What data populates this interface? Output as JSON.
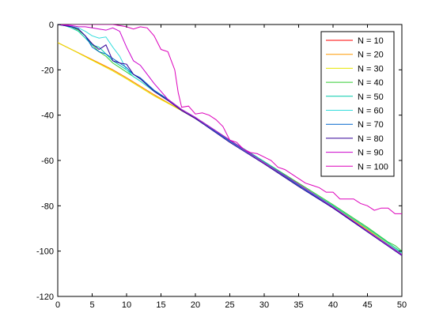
{
  "chart_data": {
    "type": "line",
    "title": "",
    "xlabel": "",
    "ylabel": "",
    "xlim": [
      0,
      50
    ],
    "ylim": [
      -120,
      0
    ],
    "xticks": [
      0,
      5,
      10,
      15,
      20,
      25,
      30,
      35,
      40,
      45,
      50
    ],
    "yticks": [
      0,
      -20,
      -40,
      -60,
      -80,
      -100,
      -120
    ],
    "grid": false,
    "legend_position": "top-right",
    "series": [
      {
        "name": "N = 10",
        "color": "#ff0000",
        "points": [
          [
            0,
            -8
          ],
          [
            2,
            -11
          ],
          [
            5,
            -15.5
          ],
          [
            8,
            -20
          ],
          [
            10,
            -23.5
          ],
          [
            14,
            -31
          ],
          [
            18,
            -38
          ],
          [
            20,
            -41.5
          ],
          [
            25,
            -51
          ],
          [
            30,
            -61
          ],
          [
            35,
            -71
          ],
          [
            40,
            -80.5
          ],
          [
            45,
            -90.5
          ],
          [
            50,
            -101.5
          ]
        ]
      },
      {
        "name": "N = 20",
        "color": "#ff9900",
        "points": [
          [
            0,
            -8
          ],
          [
            2,
            -11
          ],
          [
            5,
            -15.5
          ],
          [
            8,
            -20
          ],
          [
            10,
            -23.5
          ],
          [
            14,
            -31
          ],
          [
            18,
            -38
          ],
          [
            20,
            -41.5
          ],
          [
            25,
            -51
          ],
          [
            30,
            -61
          ],
          [
            35,
            -71
          ],
          [
            40,
            -80.5
          ],
          [
            45,
            -90.5
          ],
          [
            50,
            -101.5
          ]
        ]
      },
      {
        "name": "N = 30",
        "color": "#e6e600",
        "points": [
          [
            0,
            -8
          ],
          [
            2,
            -11
          ],
          [
            5,
            -15.8
          ],
          [
            8,
            -20.5
          ],
          [
            10,
            -24
          ],
          [
            14,
            -31.5
          ],
          [
            18,
            -38
          ],
          [
            20,
            -41.5
          ],
          [
            25,
            -51
          ],
          [
            30,
            -61
          ],
          [
            35,
            -71
          ],
          [
            40,
            -80.5
          ],
          [
            45,
            -90.5
          ],
          [
            50,
            -101
          ]
        ]
      },
      {
        "name": "N = 40",
        "color": "#33cc33",
        "points": [
          [
            0,
            0
          ],
          [
            1,
            -0.5
          ],
          [
            2,
            -1
          ],
          [
            3,
            -2.5
          ],
          [
            4,
            -5
          ],
          [
            5,
            -9
          ],
          [
            6,
            -12
          ],
          [
            7,
            -14
          ],
          [
            8,
            -17
          ],
          [
            9,
            -19
          ],
          [
            10,
            -21
          ],
          [
            11,
            -23
          ],
          [
            12,
            -25
          ],
          [
            14,
            -29.5
          ],
          [
            16,
            -33
          ],
          [
            18,
            -37.5
          ],
          [
            20,
            -41
          ],
          [
            25,
            -51
          ],
          [
            30,
            -60.5
          ],
          [
            35,
            -70
          ],
          [
            40,
            -79.5
          ],
          [
            45,
            -89.5
          ],
          [
            48,
            -96
          ],
          [
            49,
            -97.5
          ],
          [
            50,
            -100
          ]
        ]
      },
      {
        "name": "N = 50",
        "color": "#00ccaa",
        "points": [
          [
            0,
            0
          ],
          [
            1,
            -0.5
          ],
          [
            2,
            -1.5
          ],
          [
            3,
            -3
          ],
          [
            4,
            -6
          ],
          [
            5,
            -9
          ],
          [
            6,
            -10
          ],
          [
            7,
            -13
          ],
          [
            8,
            -16
          ],
          [
            9,
            -18
          ],
          [
            10,
            -20
          ],
          [
            11,
            -22
          ],
          [
            12,
            -24
          ],
          [
            14,
            -29
          ],
          [
            16,
            -33
          ],
          [
            18,
            -37.5
          ],
          [
            20,
            -41
          ],
          [
            25,
            -51
          ],
          [
            30,
            -60.5
          ],
          [
            35,
            -70.5
          ],
          [
            40,
            -80
          ],
          [
            45,
            -90
          ],
          [
            50,
            -100.5
          ]
        ]
      },
      {
        "name": "N = 60",
        "color": "#33dddd",
        "points": [
          [
            0,
            0
          ],
          [
            1,
            -0.5
          ],
          [
            2,
            -0.8
          ],
          [
            3,
            -1.5
          ],
          [
            4,
            -3
          ],
          [
            5,
            -5
          ],
          [
            6,
            -6
          ],
          [
            7,
            -5.5
          ],
          [
            8,
            -10
          ],
          [
            9,
            -14
          ],
          [
            10,
            -20
          ],
          [
            11,
            -23
          ],
          [
            12,
            -25
          ],
          [
            14,
            -29.5
          ],
          [
            16,
            -33.5
          ],
          [
            18,
            -37.5
          ],
          [
            20,
            -41.5
          ],
          [
            25,
            -51.5
          ],
          [
            30,
            -61
          ],
          [
            35,
            -71
          ],
          [
            40,
            -80.5
          ],
          [
            45,
            -91
          ],
          [
            50,
            -101
          ]
        ]
      },
      {
        "name": "N = 70",
        "color": "#0066cc",
        "points": [
          [
            0,
            0
          ],
          [
            1,
            -0.5
          ],
          [
            2,
            -1
          ],
          [
            3,
            -2
          ],
          [
            4,
            -5
          ],
          [
            5,
            -10
          ],
          [
            6,
            -12
          ],
          [
            7,
            -13
          ],
          [
            8,
            -15
          ],
          [
            9,
            -17
          ],
          [
            10,
            -19
          ],
          [
            11,
            -22
          ],
          [
            12,
            -23.5
          ],
          [
            14,
            -29
          ],
          [
            16,
            -33
          ],
          [
            18,
            -37.5
          ],
          [
            20,
            -41
          ],
          [
            25,
            -51.5
          ],
          [
            30,
            -61
          ],
          [
            35,
            -71
          ],
          [
            40,
            -81
          ],
          [
            45,
            -91
          ],
          [
            50,
            -101.5
          ]
        ]
      },
      {
        "name": "N = 80",
        "color": "#330099",
        "points": [
          [
            0,
            0
          ],
          [
            1,
            -0.5
          ],
          [
            2,
            -1
          ],
          [
            3,
            -2
          ],
          [
            4,
            -5
          ],
          [
            5,
            -8.5
          ],
          [
            6,
            -11
          ],
          [
            7,
            -9
          ],
          [
            8,
            -16
          ],
          [
            9,
            -17
          ],
          [
            10,
            -17.5
          ],
          [
            11,
            -22
          ],
          [
            12,
            -24
          ],
          [
            14,
            -29.5
          ],
          [
            16,
            -33.5
          ],
          [
            18,
            -38
          ],
          [
            20,
            -41.5
          ],
          [
            25,
            -52
          ],
          [
            30,
            -61.5
          ],
          [
            35,
            -71.5
          ],
          [
            40,
            -81
          ],
          [
            45,
            -91.5
          ],
          [
            50,
            -102
          ]
        ]
      },
      {
        "name": "N = 90",
        "color": "#cc00cc",
        "points": [
          [
            0,
            0
          ],
          [
            1,
            -0.2
          ],
          [
            2,
            -0.5
          ],
          [
            3,
            -1
          ],
          [
            4,
            -1
          ],
          [
            5,
            -1.5
          ],
          [
            6,
            -2
          ],
          [
            7,
            -2.5
          ],
          [
            8,
            -1.5
          ],
          [
            9,
            -3
          ],
          [
            10,
            -10
          ],
          [
            11,
            -16
          ],
          [
            12,
            -18
          ],
          [
            13,
            -22
          ],
          [
            14,
            -26
          ],
          [
            16,
            -33
          ],
          [
            18,
            -37.5
          ],
          [
            20,
            -41
          ],
          [
            25,
            -51
          ],
          [
            30,
            -61
          ],
          [
            35,
            -70.5
          ],
          [
            40,
            -80.5
          ],
          [
            45,
            -91
          ],
          [
            50,
            -101.5
          ]
        ]
      },
      {
        "name": "N = 100",
        "color": "#dd00bb",
        "points": [
          [
            0,
            0
          ],
          [
            2,
            0
          ],
          [
            4,
            0
          ],
          [
            6,
            0
          ],
          [
            8,
            0
          ],
          [
            9,
            -0.5
          ],
          [
            10,
            -1
          ],
          [
            11,
            -2
          ],
          [
            12,
            -1
          ],
          [
            13,
            -1.5
          ],
          [
            14,
            -5
          ],
          [
            15,
            -11
          ],
          [
            16,
            -12
          ],
          [
            17,
            -20
          ],
          [
            17.5,
            -30
          ],
          [
            18,
            -36.5
          ],
          [
            19,
            -36
          ],
          [
            20,
            -39.5
          ],
          [
            21,
            -39
          ],
          [
            22,
            -40
          ],
          [
            23,
            -42
          ],
          [
            24,
            -45
          ],
          [
            25,
            -51
          ],
          [
            26,
            -52
          ],
          [
            27,
            -55
          ],
          [
            28,
            -56.5
          ],
          [
            29,
            -57
          ],
          [
            30,
            -58.5
          ],
          [
            31,
            -60
          ],
          [
            32,
            -63
          ],
          [
            33,
            -64
          ],
          [
            34,
            -66
          ],
          [
            35,
            -68
          ],
          [
            36,
            -70
          ],
          [
            37,
            -71
          ],
          [
            38,
            -72
          ],
          [
            39,
            -74
          ],
          [
            40,
            -74
          ],
          [
            41,
            -77
          ],
          [
            42,
            -77
          ],
          [
            43,
            -77
          ],
          [
            44,
            -79
          ],
          [
            45,
            -80
          ],
          [
            46,
            -82
          ],
          [
            47,
            -81
          ],
          [
            48,
            -81
          ],
          [
            49,
            -83.5
          ],
          [
            50,
            -83.5
          ]
        ]
      }
    ]
  }
}
